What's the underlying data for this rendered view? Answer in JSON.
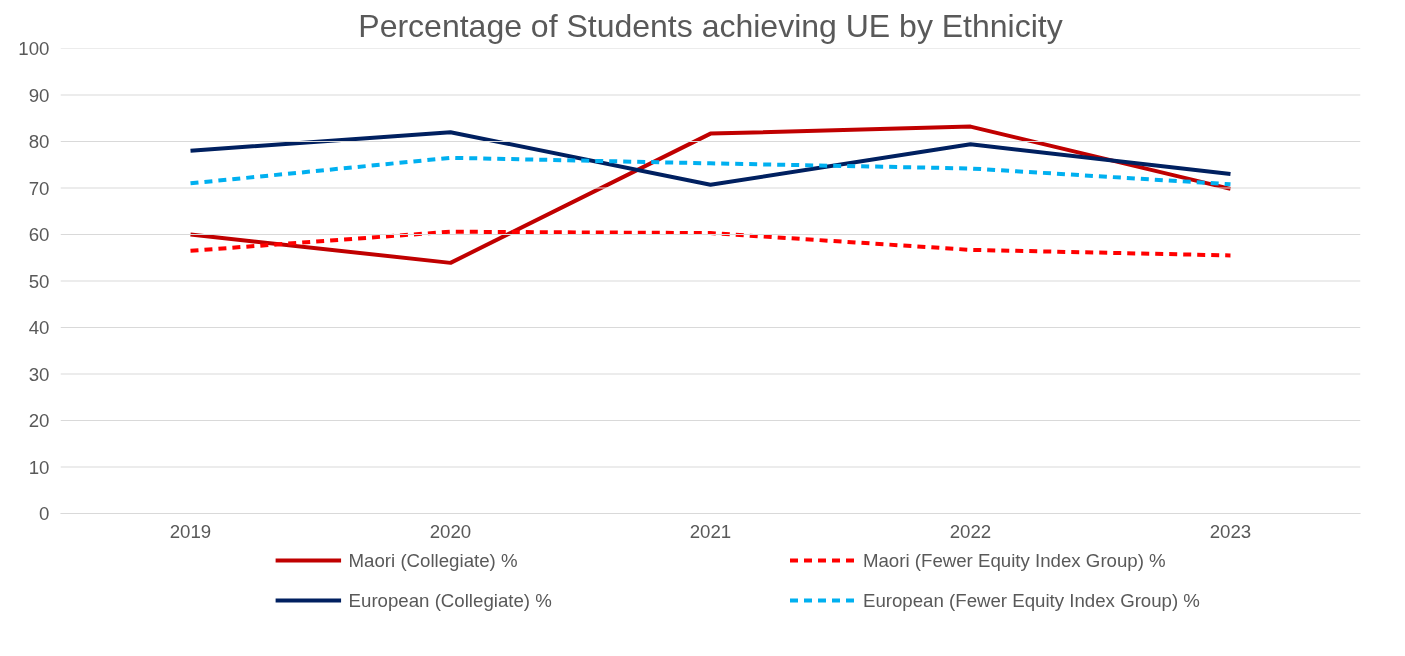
{
  "chart_data": {
    "type": "line",
    "title": "Percentage of Students achieving UE by Ethnicity",
    "categories": [
      "2019",
      "2020",
      "2021",
      "2022",
      "2023"
    ],
    "series": [
      {
        "name": "Maori (Collegiate) %",
        "color": "#c00000",
        "line_style": "solid",
        "values": [
          60,
          53.9,
          81.7,
          83.2,
          69.8
        ]
      },
      {
        "name": "Maori (Fewer Equity Index Group) %",
        "color": "#ff0000",
        "line_style": "dashed",
        "values": [
          56.5,
          60.6,
          60.3,
          56.7,
          55.5
        ]
      },
      {
        "name": "European (Collegiate) %",
        "color": "#002060",
        "line_style": "solid",
        "values": [
          78,
          82,
          70.7,
          79.4,
          73
        ]
      },
      {
        "name": "European (Fewer Equity Index Group) %",
        "color": "#00b0f0",
        "line_style": "dashed",
        "values": [
          71,
          76.5,
          75.3,
          74.2,
          70.8
        ]
      }
    ],
    "ylim": [
      0,
      100
    ],
    "yticks": [
      0,
      10,
      20,
      30,
      40,
      50,
      60,
      70,
      80,
      90,
      100
    ],
    "grid": "y",
    "legend": "bottom",
    "marker": "none"
  }
}
